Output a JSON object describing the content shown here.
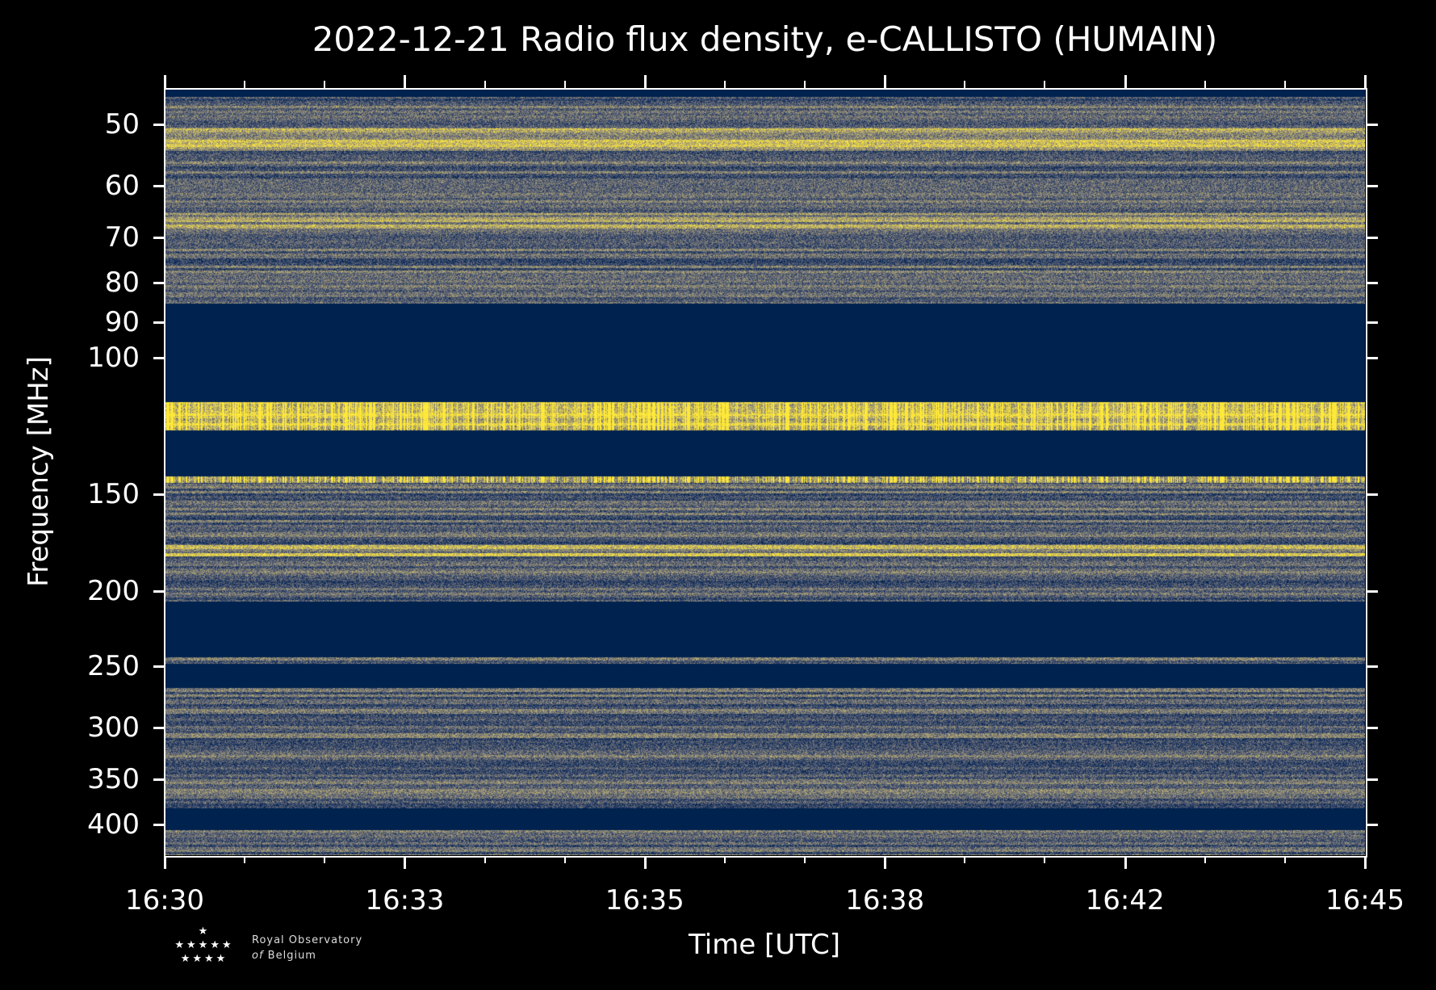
{
  "chart_data": {
    "type": "heatmap",
    "title": "2022-12-21 Radio flux density, e-CALLISTO (HUMAIN)",
    "xlabel": "Time [UTC]",
    "ylabel": "Frequency [MHz]",
    "x_ticks": [
      "16:30",
      "16:33",
      "16:35",
      "16:38",
      "16:42",
      "16:45"
    ],
    "x_range_minutes": [
      0,
      15
    ],
    "y_scale": "log",
    "ylim": [
      45,
      438
    ],
    "y_inverted": true,
    "y_ticks": [
      50,
      60,
      70,
      80,
      90,
      100,
      150,
      200,
      250,
      300,
      350,
      400
    ],
    "colormap": "cividis",
    "masked_bands_mhz": [
      [
        45,
        46
      ],
      [
        85,
        114
      ],
      [
        124,
        142
      ],
      [
        206,
        243
      ],
      [
        248,
        266
      ],
      [
        381,
        406
      ]
    ],
    "bright_bands_mhz": [
      [
        50.5,
        54,
        0.35
      ],
      [
        65,
        68,
        0.25
      ],
      [
        114,
        124,
        0.45
      ],
      [
        142,
        145,
        0.35
      ],
      [
        174,
        176.5,
        0.4
      ],
      [
        178.5,
        180,
        0.5
      ]
    ],
    "grid": false
  },
  "logo": {
    "stars": "★",
    "line1": "Royal Observatory",
    "line2_italic": "of",
    "line2": "Belgium"
  }
}
